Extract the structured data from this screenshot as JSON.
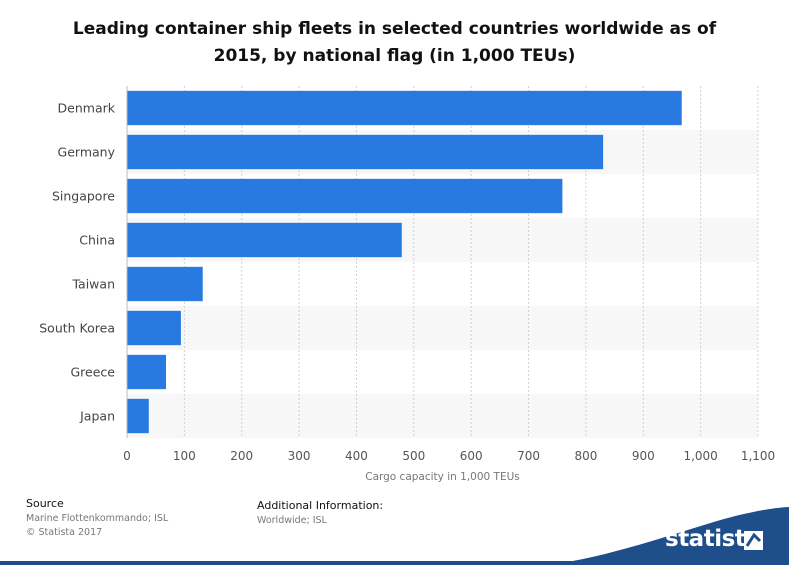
{
  "chart_data": {
    "type": "bar",
    "orientation": "horizontal",
    "title": "Leading container ship fleets in selected countries worldwide as of 2015, by national flag (in 1,000 TEUs)",
    "xlabel": "Cargo capacity in 1,000 TEUs",
    "ylabel": "",
    "categories": [
      "Denmark",
      "Germany",
      "Singapore",
      "China",
      "Taiwan",
      "South Korea",
      "Greece",
      "Japan"
    ],
    "values": [
      967,
      830,
      759,
      479,
      132,
      94,
      68,
      38
    ],
    "xlim": [
      0,
      1100
    ],
    "ticks": [
      "0",
      "100",
      "200",
      "300",
      "400",
      "500",
      "600",
      "700",
      "800",
      "900",
      "1,000",
      "1,100"
    ],
    "grid": true,
    "bar_color": "#2879e0"
  },
  "title_line1": "Leading container ship fleets in selected countries worldwide as of",
  "title_line2": "2015, by national flag (in 1,000 TEUs)",
  "footer": {
    "source_label": "Source",
    "source_lines": [
      "Marine Flottenkommando; ISL",
      "© Statista 2017"
    ],
    "additional_label": "Additional Information:",
    "additional_text": "Worldwide; ISL"
  },
  "brand": {
    "name": "statista",
    "color": "#1f4f8b"
  }
}
